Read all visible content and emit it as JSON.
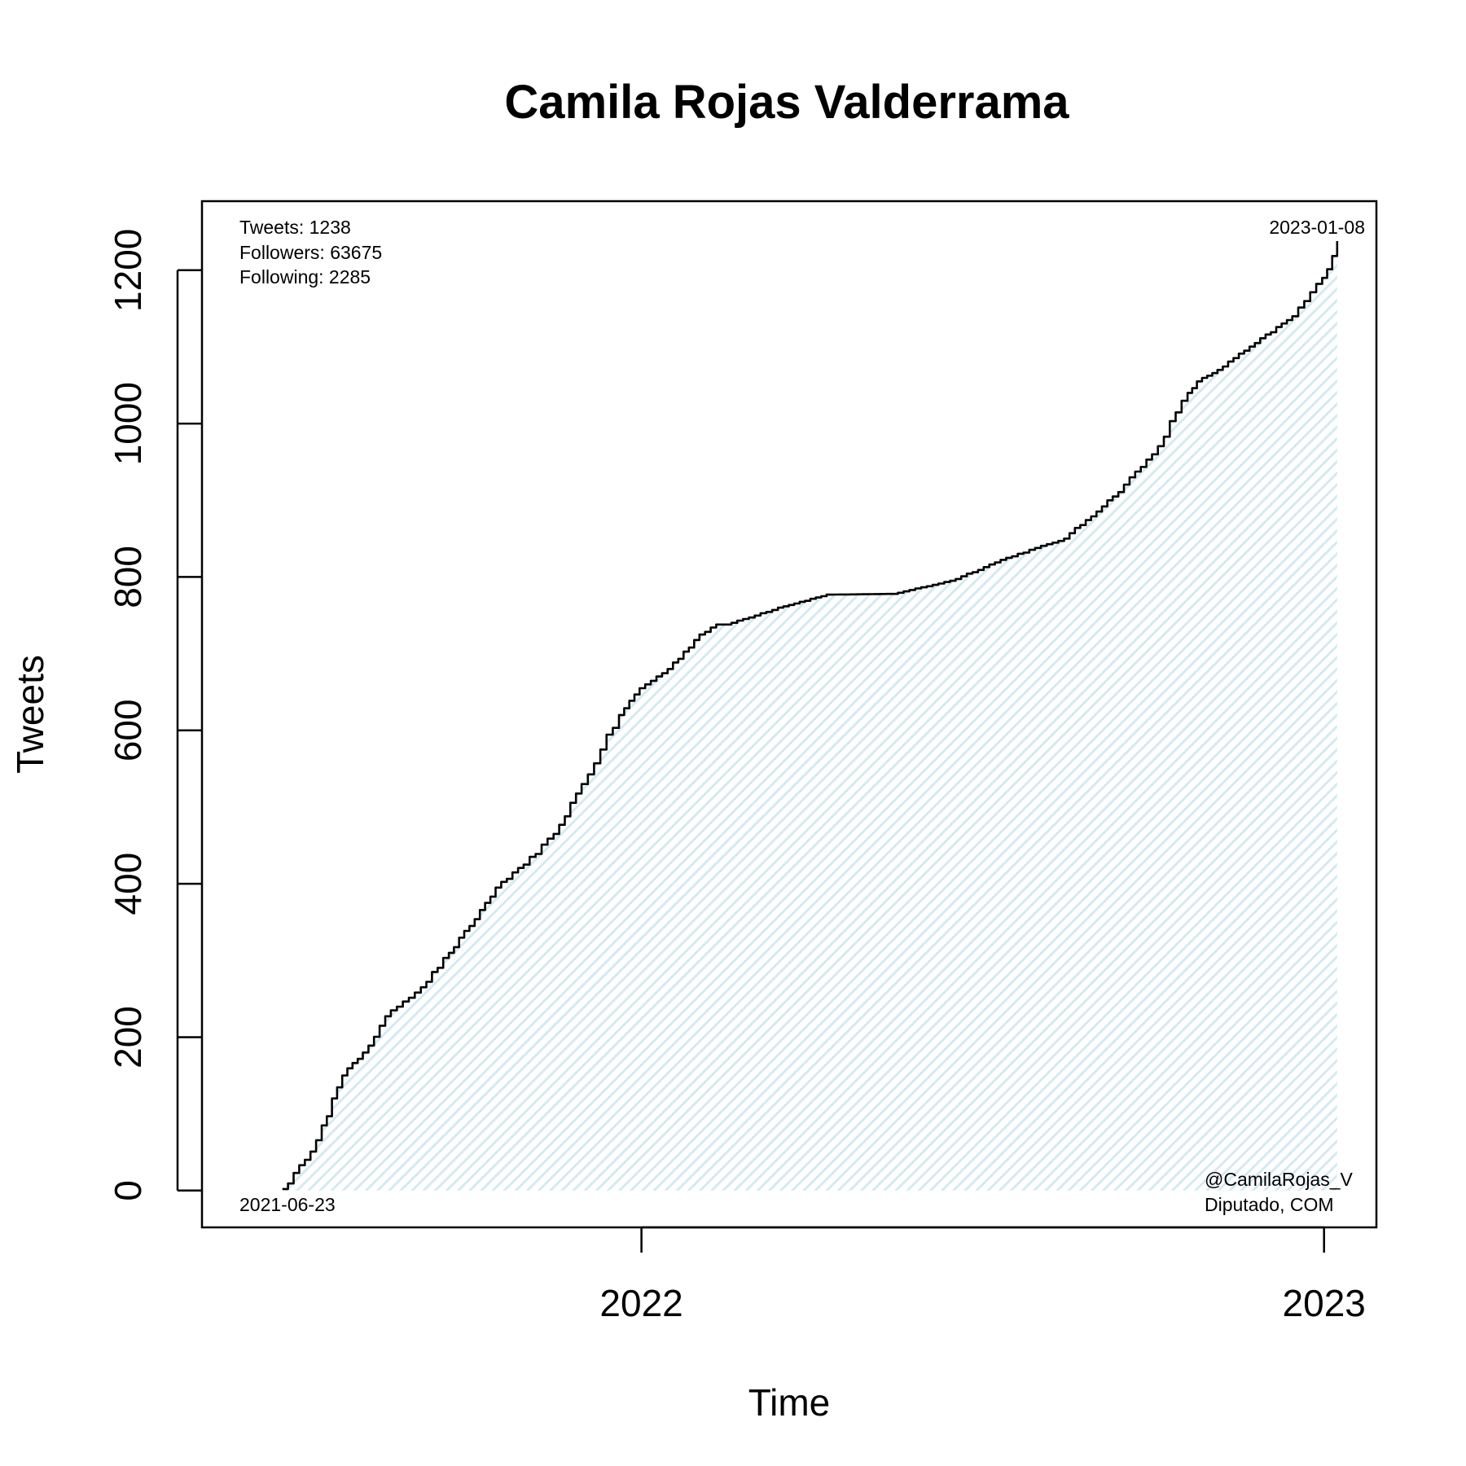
{
  "chart_data": {
    "type": "area",
    "title": "Camila Rojas Valderrama",
    "xlabel": "Time",
    "ylabel": "Tweets",
    "x_ticks": [
      "2022",
      "2023"
    ],
    "y_ticks": [
      0,
      200,
      400,
      600,
      800,
      1000,
      1200
    ],
    "xlim": [
      "2021-05-11",
      "2023-01-29"
    ],
    "ylim": [
      -48,
      1290
    ],
    "grid": false,
    "legend": "none",
    "line_color": "#000000",
    "fill_color": "#e6f3f8",
    "series": [
      {
        "x": [
          "2021-06-23",
          "2021-07-05",
          "2021-07-14",
          "2021-07-25",
          "2021-08-05",
          "2021-08-20",
          "2021-09-05",
          "2021-09-20",
          "2021-10-01",
          "2021-10-15",
          "2021-10-30",
          "2021-11-15",
          "2021-11-30",
          "2021-12-10",
          "2021-12-20",
          "2021-12-31",
          "2022-01-15",
          "2022-02-01",
          "2022-02-10",
          "2022-02-15",
          "2022-03-15",
          "2022-04-10",
          "2022-05-15",
          "2022-06-15",
          "2022-07-15",
          "2022-08-15",
          "2022-09-10",
          "2022-10-01",
          "2022-10-20",
          "2022-10-25",
          "2022-11-05",
          "2022-11-25",
          "2022-12-15",
          "2022-12-31",
          "2023-01-08"
        ],
        "y": [
          2,
          40,
          85,
          150,
          180,
          235,
          265,
          310,
          345,
          395,
          425,
          465,
          530,
          575,
          620,
          655,
          680,
          725,
          738,
          738,
          760,
          777,
          778,
          795,
          825,
          850,
          905,
          960,
          1040,
          1055,
          1070,
          1105,
          1140,
          1190,
          1238
        ]
      }
    ],
    "annotations": {
      "tweets": "Tweets: 1238",
      "followers": "Followers: 63675",
      "following": "Following: 2285",
      "start_date": "2021-06-23",
      "end_date": "2023-01-08",
      "handle": "@CamilaRojas_V",
      "role": "Diputado, COM"
    }
  }
}
